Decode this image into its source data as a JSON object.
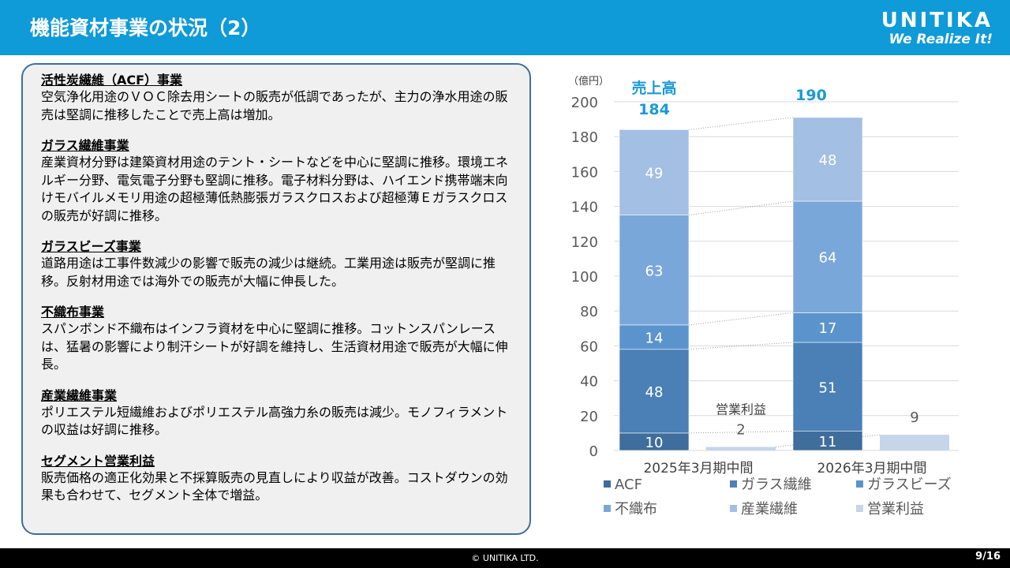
{
  "header": {
    "title": "機能資材事業の状況（2）",
    "logo_name": "UNITIKA",
    "logo_tagline": "We Realize It!"
  },
  "sections": [
    {
      "heading": "活性炭繊維（ACF）事業",
      "body": "空気浄化用途のＶＯＣ除去用シートの販売が低調であったが、主力の浄水用途の販売は堅調に推移したことで売上高は増加。"
    },
    {
      "heading": "ガラス繊維事業",
      "body": "産業資材分野は建築資材用途のテント・シートなどを中心に堅調に推移。環境エネルギー分野、電気電子分野も堅調に推移。電子材料分野は、ハイエンド携帯端末向けモバイルメモリ用途の超極薄低熱膨張ガラスクロスおよび超極薄Ｅガラスクロスの販売が好調に推移。"
    },
    {
      "heading": "ガラスビーズ事業",
      "body": "道路用途は工事件数減少の影響で販売の減少は継続。工業用途は販売が堅調に推移。反射材用途では海外での販売が大幅に伸長した。"
    },
    {
      "heading": "不織布事業",
      "body": "スパンボンド不織布はインフラ資材を中心に堅調に推移。コットンスパンレースは、猛暑の影響により制汗シートが好調を維持し、生活資材用途で販売が大幅に伸長。"
    },
    {
      "heading": "産業繊維事業",
      "body": "ポリエステル短繊維およびポリエステル高強力糸の販売は減少。モノフィラメントの収益は好調に推移。"
    },
    {
      "heading": "セグメント営業利益",
      "body": "販売価格の適正化効果と不採算販売の見直しにより収益が改善。コストダウンの効果も合わせて、セグメント全体で増益。"
    }
  ],
  "chart_data": {
    "type": "bar",
    "stacked": true,
    "unit_label": "（億円）",
    "ylim": [
      0,
      200
    ],
    "yticks": [
      0,
      20,
      40,
      60,
      80,
      100,
      120,
      140,
      160,
      180,
      200
    ],
    "categories": [
      "2025年3月期中間",
      "2026年3月期中間"
    ],
    "series": [
      {
        "name": "ACF",
        "values": [
          10,
          11
        ],
        "color": "#3f6d9c"
      },
      {
        "name": "ガラス繊維",
        "values": [
          48,
          51
        ],
        "color": "#4a80b6"
      },
      {
        "name": "ガラスビーズ",
        "values": [
          14,
          17
        ],
        "color": "#5b94cd"
      },
      {
        "name": "不織布",
        "values": [
          63,
          64
        ],
        "color": "#7aa7d9"
      },
      {
        "name": "産業繊維",
        "values": [
          49,
          48
        ],
        "color": "#a3bfe3"
      }
    ],
    "profit": {
      "name": "営業利益",
      "values": [
        2,
        9
      ],
      "color": "#c5d5ea",
      "label": "営業利益"
    },
    "totals_label": "売上高",
    "totals": [
      184,
      190
    ],
    "accent": "#1a9ad6"
  },
  "footer": {
    "copyright": "© UNITIKA LTD.",
    "page": "9/16"
  }
}
